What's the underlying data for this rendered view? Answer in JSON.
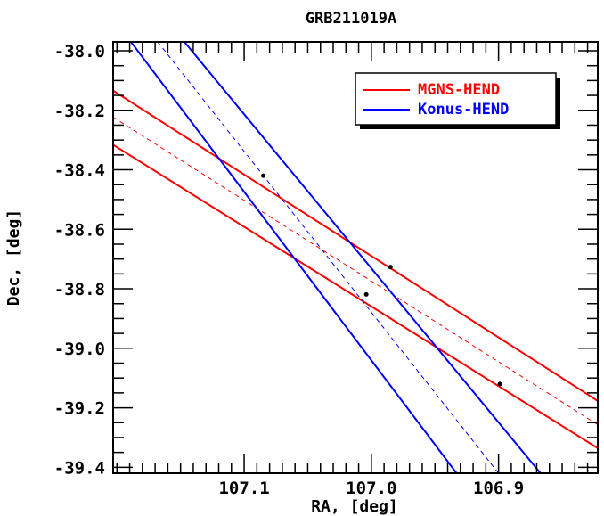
{
  "chart_data": {
    "type": "line",
    "title": "GRB211019A",
    "xlabel": "RA, [deg]",
    "ylabel": "Dec, [deg]",
    "xlim": [
      107.203,
      106.822
    ],
    "ylim": [
      -39.42,
      -37.97
    ],
    "x_reversed": true,
    "x_ticks": [
      107.1,
      107.0,
      106.9
    ],
    "x_tick_labels": [
      "107.1",
      "107.0",
      "106.9"
    ],
    "y_ticks": [
      -38.0,
      -38.2,
      -38.4,
      -38.6,
      -38.8,
      -39.0,
      -39.2,
      -39.4
    ],
    "y_tick_labels": [
      "-38.0",
      "-38.2",
      "-38.4",
      "-38.6",
      "-38.8",
      "-39.0",
      "-39.2",
      "-39.4"
    ],
    "legend_position": "top-right",
    "series": [
      {
        "name": "MGNS-HEND",
        "color": "#ff0000",
        "style": "solid",
        "x": [
          107.203,
          106.822
        ],
        "y": [
          -38.134,
          -39.177
        ]
      },
      {
        "name": "MGNS-HEND",
        "color": "#ff0000",
        "style": "solid",
        "x": [
          107.203,
          106.822
        ],
        "y": [
          -38.316,
          -39.336
        ]
      },
      {
        "name": "MGNS-HEND",
        "color": "#ff0000",
        "style": "dashed",
        "x": [
          107.203,
          106.822
        ],
        "y": [
          -38.223,
          -39.257
        ]
      },
      {
        "name": "Konus-HEND",
        "color": "#0000ff",
        "style": "solid",
        "x": [
          107.189,
          106.933
        ],
        "y": [
          -37.97,
          -39.42
        ]
      },
      {
        "name": "Konus-HEND",
        "color": "#0000ff",
        "style": "solid",
        "x": [
          107.147,
          106.867
        ],
        "y": [
          -37.97,
          -39.42
        ]
      },
      {
        "name": "Konus-HEND",
        "color": "#0000ff",
        "style": "dashed",
        "x": [
          107.168,
          106.9
        ],
        "y": [
          -37.97,
          -39.42
        ]
      }
    ],
    "intersection_points": [
      {
        "x": 107.085,
        "y": -38.42
      },
      {
        "x": 106.985,
        "y": -38.727
      },
      {
        "x": 107.004,
        "y": -38.819
      },
      {
        "x": 106.899,
        "y": -39.12
      }
    ]
  }
}
